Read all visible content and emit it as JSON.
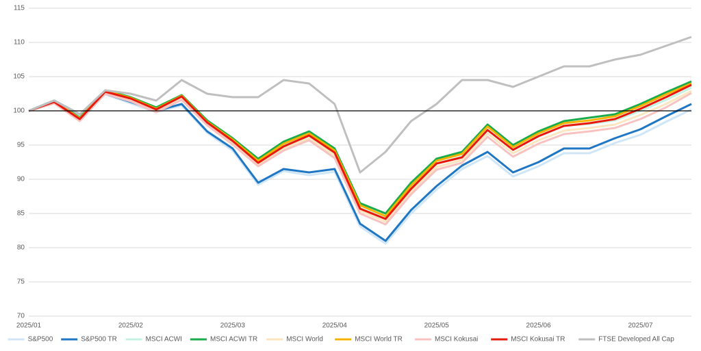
{
  "chart_data": {
    "type": "line",
    "categories": [
      "2025/01",
      null,
      null,
      null,
      "2025/02",
      null,
      null,
      null,
      "2025/03",
      null,
      null,
      null,
      "2025/04",
      null,
      null,
      null,
      "2025/05",
      null,
      null,
      null,
      "2025/06",
      null,
      null,
      null,
      "2025/07",
      null,
      null
    ],
    "ylim": [
      70,
      115
    ],
    "yticks": [
      70,
      75,
      80,
      85,
      90,
      95,
      100,
      105,
      110,
      115
    ],
    "grid": true,
    "reference_line": 100,
    "legend": "bottom",
    "series": [
      {
        "name": "S&P500",
        "color": "#cfe6f7",
        "values": [
          100,
          101.4,
          99.4,
          102.4,
          101.1,
          99.8,
          100.8,
          96.8,
          94.2,
          89.2,
          91.2,
          90.6,
          91.1,
          83.1,
          80.6,
          85,
          88.5,
          91.5,
          93.4,
          90.4,
          91.9,
          93.8,
          93.8,
          95.3,
          96.5,
          98.4,
          100.2
        ]
      },
      {
        "name": "S&P500 TR",
        "color": "#1f77c4",
        "values": [
          100,
          101.5,
          99.5,
          102.5,
          101.3,
          100,
          101,
          97,
          94.5,
          89.5,
          91.5,
          91,
          91.5,
          83.5,
          81,
          85.5,
          89,
          92,
          94,
          91,
          92.5,
          94.5,
          94.5,
          96,
          97.3,
          99.2,
          101
        ]
      },
      {
        "name": "MSCI ACWI",
        "color": "#c5f2e0",
        "values": [
          100,
          101.3,
          98.7,
          102.7,
          101.7,
          100.1,
          101.9,
          98.2,
          95.5,
          92.4,
          94.9,
          96.3,
          93.8,
          85.8,
          84.3,
          88.7,
          92.3,
          93.3,
          97.2,
          94.3,
          96.3,
          97.8,
          98.1,
          98.6,
          100,
          101.6,
          103.4
        ]
      },
      {
        "name": "MSCI ACWI TR",
        "color": "#1aab4a",
        "values": [
          100,
          101.5,
          99,
          103,
          102,
          100.5,
          102.3,
          98.6,
          96,
          93,
          95.5,
          97,
          94.5,
          86.5,
          85,
          89.5,
          93,
          94,
          98,
          95,
          97,
          98.5,
          99,
          99.5,
          101,
          102.7,
          104.3
        ]
      },
      {
        "name": "MSCI World",
        "color": "#fbe6c0",
        "values": [
          100,
          101.2,
          98.6,
          102.6,
          101.5,
          99.9,
          101.8,
          98,
          95.3,
          92.1,
          94.5,
          96,
          93.5,
          85.4,
          83.8,
          88.2,
          91.8,
          92.8,
          96.7,
          93.8,
          95.7,
          97.1,
          97.5,
          98,
          99.4,
          101,
          102.9
        ]
      },
      {
        "name": "MSCI World TR",
        "color": "#f5b300",
        "values": [
          100,
          101.4,
          98.9,
          102.9,
          101.9,
          100.3,
          102.2,
          98.4,
          95.8,
          92.7,
          95.2,
          96.7,
          94.2,
          86.2,
          84.6,
          89.1,
          92.7,
          93.7,
          97.7,
          94.7,
          96.7,
          98.2,
          98.6,
          99.2,
          100.7,
          102.4,
          104
        ]
      },
      {
        "name": "MSCI Kokusai",
        "color": "#f7c2c0",
        "values": [
          100,
          101.1,
          98.5,
          102.5,
          101.4,
          99.8,
          101.6,
          97.9,
          95.1,
          91.9,
          94.2,
          95.7,
          93.1,
          85,
          83.4,
          87.8,
          91.4,
          92.4,
          96.2,
          93.3,
          95.2,
          96.6,
          97,
          97.5,
          98.8,
          100.5,
          102.6
        ]
      },
      {
        "name": "MSCI Kokusai TR",
        "color": "#e8180c",
        "values": [
          100,
          101.3,
          98.8,
          102.8,
          101.8,
          100.2,
          102.1,
          98.3,
          95.6,
          92.4,
          94.8,
          96.4,
          93.9,
          85.7,
          84.2,
          88.6,
          92.3,
          93.2,
          97.2,
          94.3,
          96.3,
          97.8,
          98.2,
          98.8,
          100.3,
          102,
          103.8
        ]
      },
      {
        "name": "FTSE Developed All Cap",
        "color": "#bfbfbf",
        "values": [
          100,
          101.5,
          99.5,
          103,
          102.5,
          101.5,
          104.5,
          102.5,
          102,
          102,
          104.5,
          104,
          101,
          91,
          94,
          98.5,
          101,
          104.5,
          104.5,
          103.5,
          105,
          106.5,
          106.5,
          107.5,
          108.2,
          109.5,
          110.8
        ]
      }
    ]
  }
}
